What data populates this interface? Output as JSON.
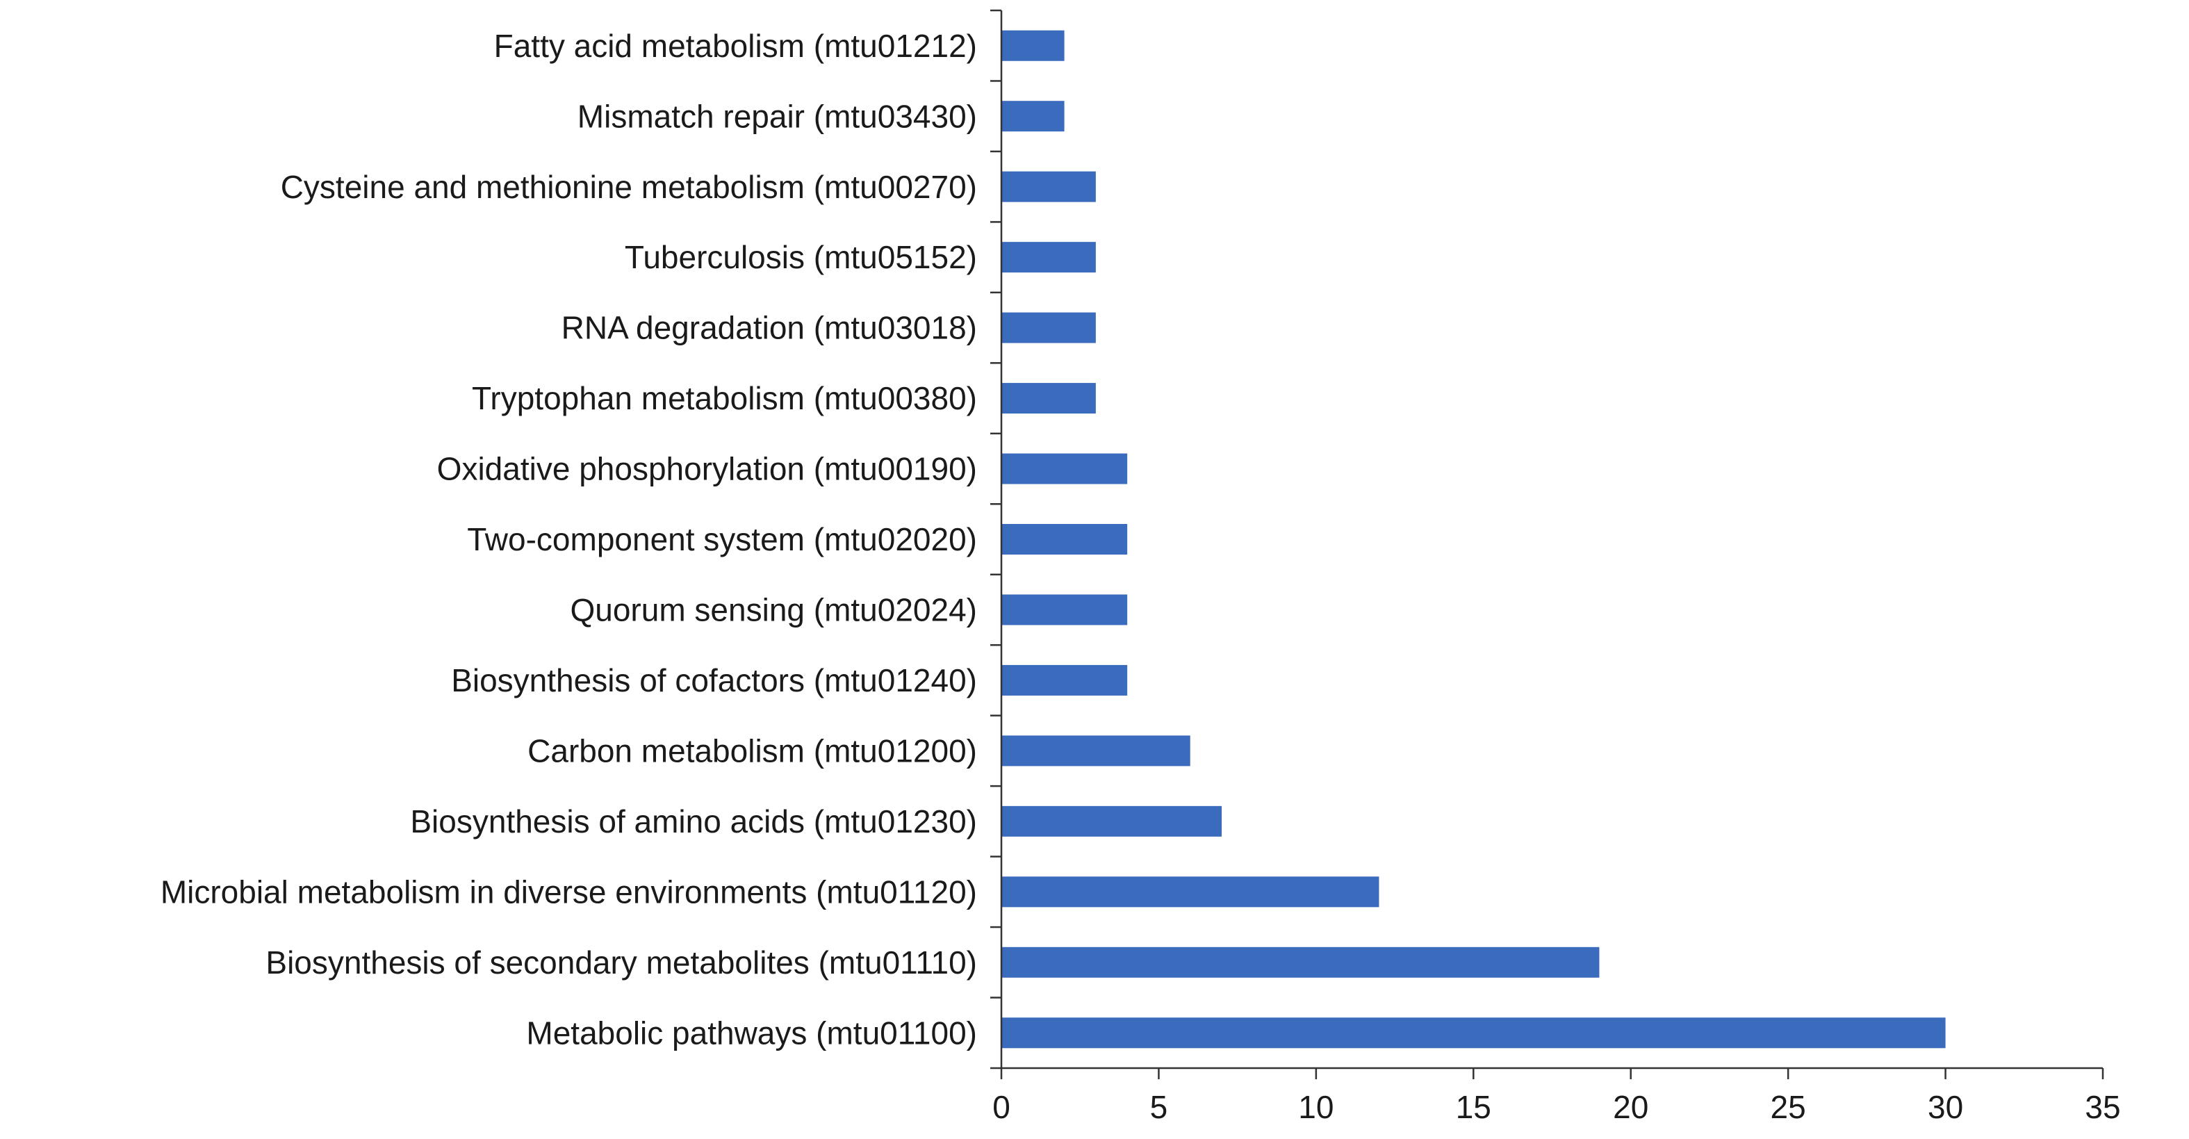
{
  "chart_data": {
    "type": "bar",
    "orientation": "horizontal",
    "title": "",
    "xlabel": "",
    "ylabel": "",
    "categories": [
      "Fatty acid metabolism (mtu01212)",
      "Mismatch repair (mtu03430)",
      "Cysteine and methionine metabolism (mtu00270)",
      "Tuberculosis (mtu05152)",
      "RNA degradation (mtu03018)",
      "Tryptophan metabolism (mtu00380)",
      "Oxidative phosphorylation (mtu00190)",
      "Two-component system (mtu02020)",
      "Quorum sensing (mtu02024)",
      "Biosynthesis of cofactors (mtu01240)",
      "Carbon metabolism (mtu01200)",
      "Biosynthesis of amino acids (mtu01230)",
      "Microbial metabolism in diverse environments (mtu01120)",
      "Biosynthesis of secondary metabolites (mtu01110)",
      "Metabolic pathways  (mtu01100)"
    ],
    "values": [
      2,
      2,
      3,
      3,
      3,
      3,
      4,
      4,
      4,
      4,
      6,
      7,
      12,
      19,
      30
    ],
    "xlim": [
      0,
      35
    ],
    "xticks": [
      "0",
      "5",
      "10",
      "15",
      "20",
      "25",
      "30",
      "35"
    ],
    "grid": false,
    "legend": "none",
    "bar_color": "#3a6bbd"
  }
}
